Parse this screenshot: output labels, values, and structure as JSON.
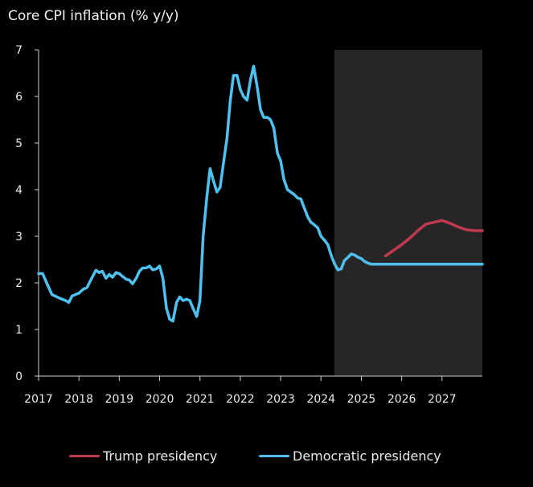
{
  "chart_data": {
    "type": "line",
    "title": "Core CPI inflation (% y/y)",
    "xlabel": "",
    "ylabel": "",
    "xlim": [
      2017.0,
      2028.0
    ],
    "ylim": [
      0,
      7
    ],
    "x_ticks": [
      2017,
      2018,
      2019,
      2020,
      2021,
      2022,
      2023,
      2024,
      2025,
      2026,
      2027
    ],
    "x_tick_labels": [
      "2017",
      "2018",
      "2019",
      "2020",
      "2021",
      "2022",
      "2023",
      "2024",
      "2025",
      "2026",
      "2027"
    ],
    "y_ticks": [
      0,
      1,
      2,
      3,
      4,
      5,
      6,
      7
    ],
    "y_tick_labels": [
      "0",
      "1",
      "2",
      "3",
      "4",
      "5",
      "6",
      "7"
    ],
    "grid": false,
    "forecast_shade": {
      "from": 2024.33,
      "to": 2028.0,
      "color": "#262626"
    },
    "legend_position": "bottom",
    "series": [
      {
        "name": "Trump presidency",
        "color": "#c0394f",
        "x": [
          2025.6,
          2025.8,
          2026.0,
          2026.2,
          2026.4,
          2026.6,
          2026.8,
          2027.0,
          2027.2,
          2027.4,
          2027.6,
          2027.8,
          2028.0
        ],
        "y": [
          2.58,
          2.7,
          2.82,
          2.96,
          3.12,
          3.26,
          3.3,
          3.34,
          3.28,
          3.2,
          3.14,
          3.12,
          3.12
        ]
      },
      {
        "name": "Democratic presidency",
        "color": "#4fc1f0",
        "x": [
          2017.0,
          2017.1,
          2017.2,
          2017.33,
          2017.5,
          2017.67,
          2017.75,
          2017.83,
          2018.0,
          2018.1,
          2018.2,
          2018.33,
          2018.42,
          2018.5,
          2018.58,
          2018.67,
          2018.75,
          2018.83,
          2018.92,
          2019.0,
          2019.08,
          2019.17,
          2019.25,
          2019.33,
          2019.42,
          2019.5,
          2019.58,
          2019.67,
          2019.75,
          2019.83,
          2019.92,
          2020.0,
          2020.08,
          2020.17,
          2020.25,
          2020.33,
          2020.42,
          2020.5,
          2020.58,
          2020.67,
          2020.75,
          2020.83,
          2020.92,
          2021.0,
          2021.08,
          2021.17,
          2021.25,
          2021.33,
          2021.42,
          2021.5,
          2021.58,
          2021.67,
          2021.75,
          2021.83,
          2021.92,
          2022.0,
          2022.08,
          2022.17,
          2022.25,
          2022.33,
          2022.42,
          2022.5,
          2022.58,
          2022.67,
          2022.75,
          2022.83,
          2022.92,
          2023.0,
          2023.08,
          2023.17,
          2023.25,
          2023.33,
          2023.42,
          2023.5,
          2023.58,
          2023.67,
          2023.75,
          2023.83,
          2023.92,
          2024.0,
          2024.08,
          2024.17,
          2024.25,
          2024.33,
          2024.42,
          2024.5,
          2024.58,
          2024.67,
          2024.75,
          2024.83,
          2024.92,
          2025.0,
          2025.08,
          2025.17,
          2025.25,
          2025.33,
          2025.5,
          2025.67,
          2025.83,
          2026.0,
          2026.25,
          2026.5,
          2026.75,
          2027.0,
          2027.25,
          2027.5,
          2027.75,
          2028.0
        ],
        "y": [
          2.2,
          2.2,
          2.0,
          1.75,
          1.68,
          1.62,
          1.58,
          1.72,
          1.78,
          1.86,
          1.9,
          2.12,
          2.27,
          2.22,
          2.25,
          2.1,
          2.18,
          2.12,
          2.22,
          2.2,
          2.14,
          2.08,
          2.06,
          1.98,
          2.1,
          2.25,
          2.32,
          2.32,
          2.36,
          2.28,
          2.3,
          2.36,
          2.1,
          1.45,
          1.22,
          1.18,
          1.58,
          1.7,
          1.62,
          1.65,
          1.62,
          1.45,
          1.28,
          1.62,
          3.0,
          3.85,
          4.45,
          4.2,
          3.95,
          4.05,
          4.55,
          5.1,
          5.9,
          6.45,
          6.45,
          6.15,
          6.0,
          5.92,
          6.35,
          6.65,
          6.2,
          5.72,
          5.55,
          5.55,
          5.5,
          5.32,
          4.78,
          4.62,
          4.22,
          4.0,
          3.95,
          3.9,
          3.82,
          3.8,
          3.62,
          3.42,
          3.3,
          3.25,
          3.18,
          3.0,
          2.92,
          2.82,
          2.6,
          2.42,
          2.28,
          2.3,
          2.48,
          2.55,
          2.62,
          2.6,
          2.55,
          2.52,
          2.46,
          2.42,
          2.4,
          2.4,
          2.4,
          2.4,
          2.4,
          2.4,
          2.4,
          2.4,
          2.4,
          2.4,
          2.4,
          2.4,
          2.4,
          2.4
        ]
      }
    ]
  }
}
